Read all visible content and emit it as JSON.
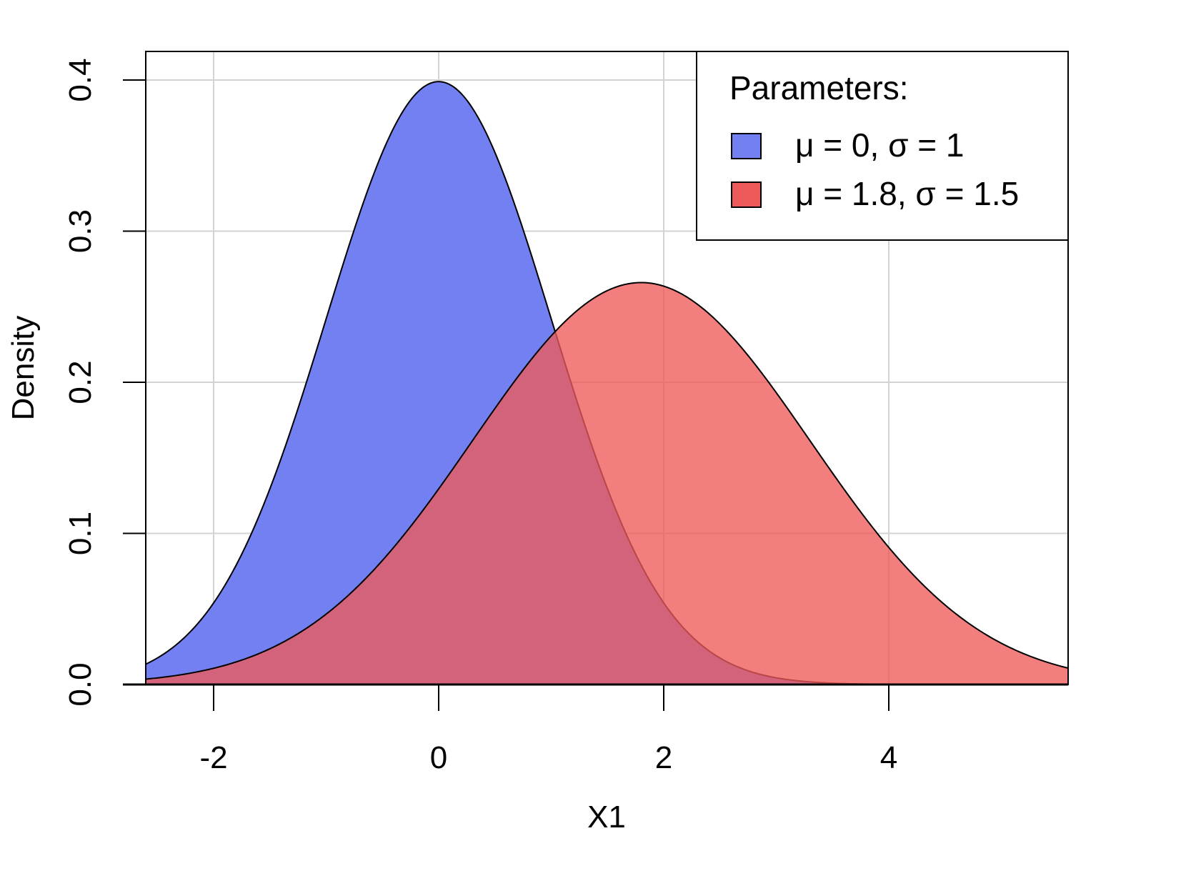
{
  "chart_data": {
    "type": "area",
    "title": "",
    "xlabel": "X1",
    "ylabel": "Density",
    "xlim": [
      -2.6,
      5.6
    ],
    "ylim": [
      0,
      0.42
    ],
    "x_ticks": [
      -2,
      0,
      2,
      4
    ],
    "x_tick_labels": [
      "-2",
      "0",
      "2",
      "4"
    ],
    "y_ticks": [
      0.0,
      0.1,
      0.2,
      0.3,
      0.4
    ],
    "y_tick_labels": [
      "0.0",
      "0.1",
      "0.2",
      "0.3",
      "0.4"
    ],
    "grid": true,
    "legend_position": "top-right",
    "legend_title": "Parameters:",
    "series": [
      {
        "name": "μ = 0, σ = 1",
        "distribution": "normal",
        "mean": 0,
        "sd": 1,
        "color": "#7380F1",
        "peak": {
          "x": 0,
          "y": 0.399
        },
        "values": [
          {
            "x": -2.6,
            "y": 0.014
          },
          {
            "x": -2,
            "y": 0.054
          },
          {
            "x": -1.5,
            "y": 0.13
          },
          {
            "x": -1,
            "y": 0.242
          },
          {
            "x": -0.5,
            "y": 0.352
          },
          {
            "x": 0,
            "y": 0.399
          },
          {
            "x": 0.5,
            "y": 0.352
          },
          {
            "x": 1,
            "y": 0.242
          },
          {
            "x": 1.5,
            "y": 0.13
          },
          {
            "x": 2,
            "y": 0.054
          },
          {
            "x": 2.5,
            "y": 0.018
          },
          {
            "x": 3,
            "y": 0.004
          },
          {
            "x": 4,
            "y": 0.0001
          },
          {
            "x": 5.6,
            "y": 0.0
          }
        ]
      },
      {
        "name": "μ = 1.8, σ = 1.5",
        "distribution": "normal",
        "mean": 1.8,
        "sd": 1.5,
        "color": "#EE5A5A",
        "peak": {
          "x": 1.8,
          "y": 0.266
        },
        "values": [
          {
            "x": -2.6,
            "y": 0.004
          },
          {
            "x": -2,
            "y": 0.011
          },
          {
            "x": -1,
            "y": 0.047
          },
          {
            "x": 0,
            "y": 0.129
          },
          {
            "x": 1,
            "y": 0.231
          },
          {
            "x": 1.8,
            "y": 0.266
          },
          {
            "x": 2,
            "y": 0.264
          },
          {
            "x": 3,
            "y": 0.194
          },
          {
            "x": 4,
            "y": 0.092
          },
          {
            "x": 5,
            "y": 0.028
          },
          {
            "x": 5.6,
            "y": 0.011
          }
        ]
      }
    ],
    "overlap_color": "#BC2C52"
  },
  "legend": {
    "title": "Parameters:",
    "items": [
      {
        "label": "μ = 0, σ = 1",
        "color": "#7380F1"
      },
      {
        "label": "μ = 1.8, σ = 1.5",
        "color": "#EE5A5A"
      }
    ]
  },
  "axes": {
    "xlabel": "X1",
    "ylabel": "Density",
    "x_tick_labels": [
      "-2",
      "0",
      "2",
      "4"
    ],
    "y_tick_labels": [
      "0.0",
      "0.1",
      "0.2",
      "0.3",
      "0.4"
    ]
  }
}
